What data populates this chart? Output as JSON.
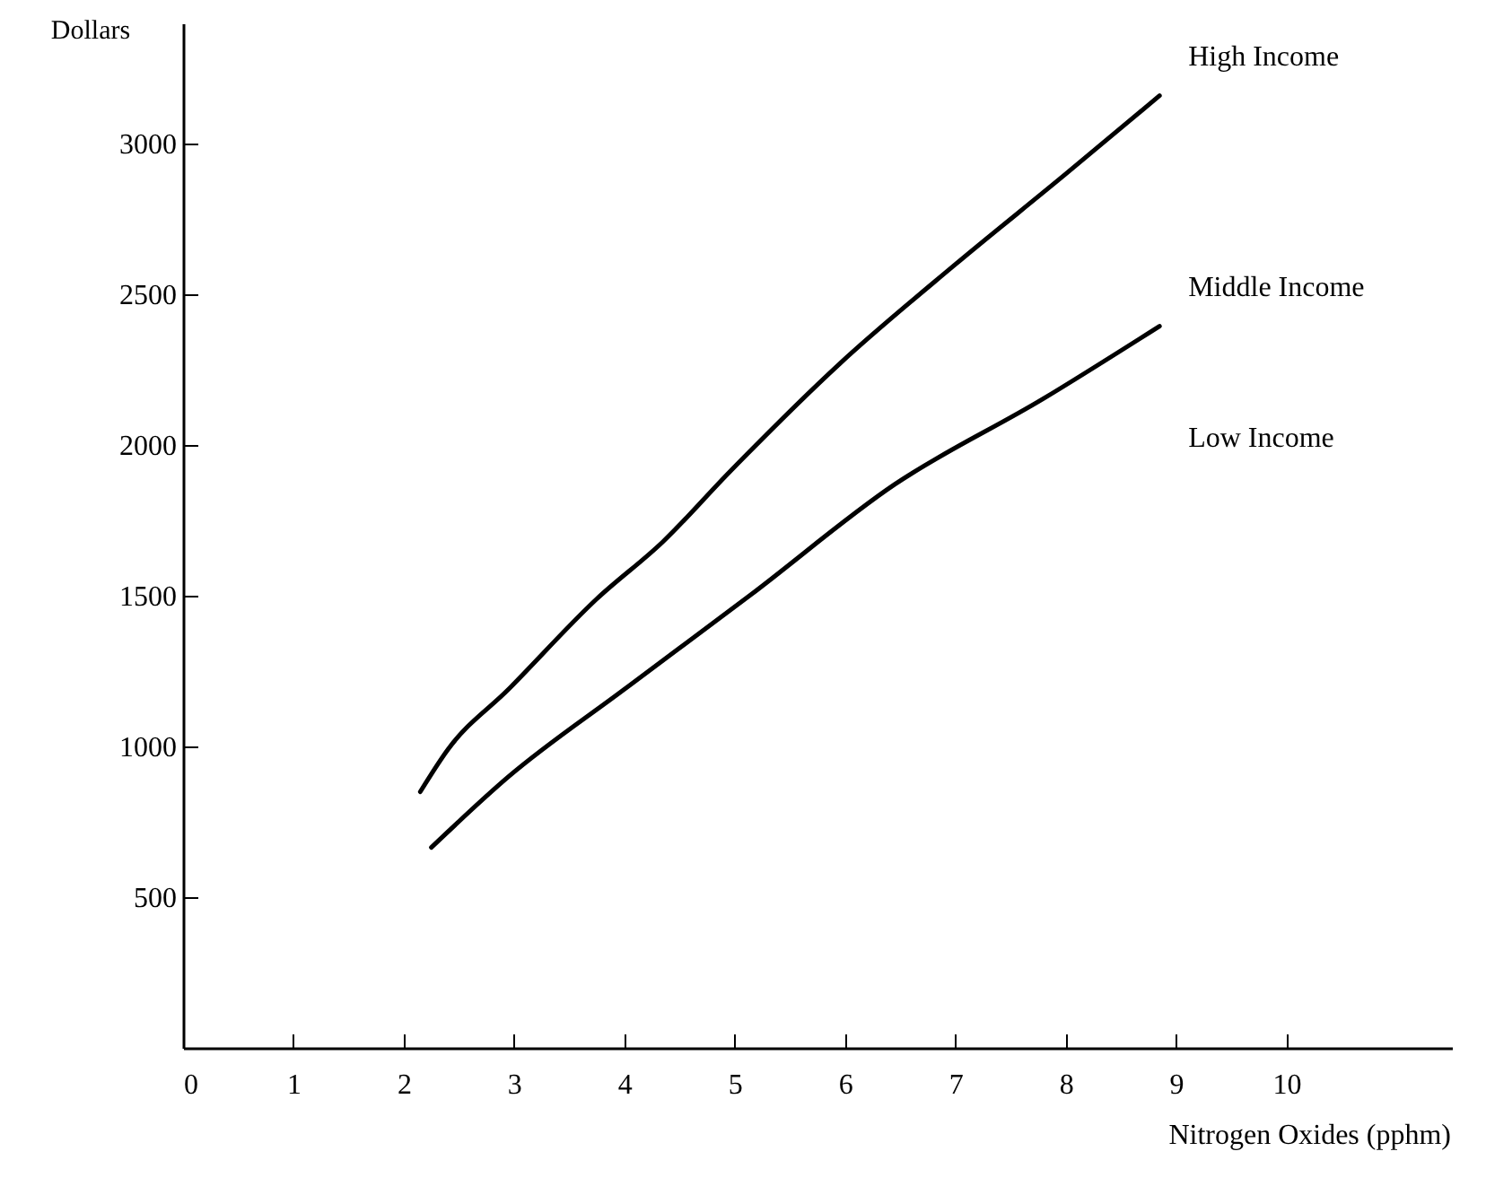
{
  "chart_data": {
    "type": "line",
    "xlabel": "Nitrogen Oxides (pphm)",
    "ylabel": "Dollars",
    "xlim": [
      0,
      11.5
    ],
    "ylim": [
      0,
      3400
    ],
    "xticks": [
      0,
      1,
      2,
      3,
      4,
      5,
      6,
      7,
      8,
      9,
      10
    ],
    "yticks": [
      500,
      1000,
      1500,
      2000,
      2500,
      3000
    ],
    "series": [
      {
        "name": "High Income",
        "color": "#000000",
        "x": [
          2.15,
          2.4,
          2.95,
          3.75,
          4.35,
          4.95,
          5.95,
          7.0,
          8.0,
          8.85
        ],
        "values": [
          850,
          990,
          1190,
          1490,
          1680,
          1910,
          2270,
          2600,
          2900,
          3160
        ]
      },
      {
        "name": "Middle Income",
        "color": "#000000",
        "x": [
          2.25,
          2.95,
          4.0,
          5.15,
          6.45,
          7.8,
          8.85
        ],
        "values": [
          665,
          900,
          1190,
          1505,
          1870,
          2155,
          2395
        ]
      }
    ],
    "annotations": [
      "Low Income"
    ]
  }
}
